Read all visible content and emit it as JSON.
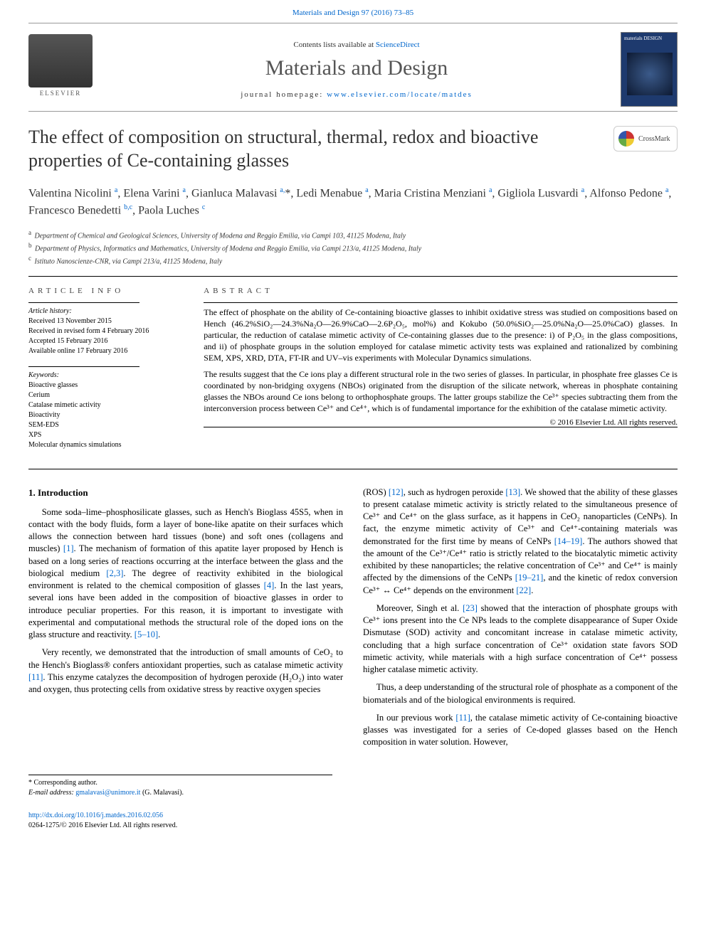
{
  "top": {
    "citation": "Materials and Design 97 (2016) 73–85",
    "contents_prefix": "Contents lists available at ",
    "sciencedirect": "ScienceDirect",
    "journal_title": "Materials and Design",
    "homepage_prefix": "journal homepage: ",
    "homepage_url": "www.elsevier.com/locate/matdes",
    "elsevier_name": "ELSEVIER",
    "cover_label": "materials DESIGN"
  },
  "crossmark": "CrossMark",
  "title": "The effect of composition on structural, thermal, redox and bioactive properties of Ce-containing glasses",
  "authors_html": "Valentina Nicolini <sup>a</sup>, Elena Varini <sup>a</sup>, Gianluca Malavasi <sup>a,</sup><span class='ast'>*</span>, Ledi Menabue <sup>a</sup>, Maria Cristina Menziani <sup>a</sup>, Gigliola Lusvardi <sup>a</sup>, Alfonso Pedone <sup>a</sup>, Francesco Benedetti <sup>b,c</sup>, Paola Luches <sup>c</sup>",
  "affiliations": [
    {
      "sup": "a",
      "text": "Department of Chemical and Geological Sciences, University of Modena and Reggio Emilia, via Campi 103, 41125 Modena, Italy"
    },
    {
      "sup": "b",
      "text": "Department of Physics, Informatics and Mathematics, University of Modena and Reggio Emilia, via Campi 213/a, 41125 Modena, Italy"
    },
    {
      "sup": "c",
      "text": "Istituto Nanoscienze-CNR, via Campi 213/a, 41125 Modena, Italy"
    }
  ],
  "info": {
    "heading": "ARTICLE INFO",
    "history_label": "Article history:",
    "history": [
      "Received 13 November 2015",
      "Received in revised form 4 February 2016",
      "Accepted 15 February 2016",
      "Available online 17 February 2016"
    ],
    "keywords_label": "Keywords:",
    "keywords": [
      "Bioactive glasses",
      "Cerium",
      "Catalase mimetic activity",
      "Bioactivity",
      "SEM-EDS",
      "XPS",
      "Molecular dynamics simulations"
    ]
  },
  "abstract": {
    "heading": "ABSTRACT",
    "p1": "The effect of phosphate on the ability of Ce-containing bioactive glasses to inhibit oxidative stress was studied on compositions based on Hench (46.2%SiO₂—24.3%Na₂O—26.9%CaO—2.6P₂O₅, mol%) and Kokubo (50.0%SiO₂—25.0%Na₂O—25.0%CaO) glasses. In particular, the reduction of catalase mimetic activity of Ce-containing glasses due to the presence: i) of P₂O₅ in the glass compositions, and ii) of phosphate groups in the solution employed for catalase mimetic activity tests was explained and rationalized by combining SEM, XPS, XRD, DTA, FT-IR and UV–vis experiments with Molecular Dynamics simulations.",
    "p2": "The results suggest that the Ce ions play a different structural role in the two series of glasses. In particular, in phosphate free glasses Ce is coordinated by non-bridging oxygens (NBOs) originated from the disruption of the silicate network, whereas in phosphate containing glasses the NBOs around Ce ions belong to orthophosphate groups. The latter groups stabilize the Ce³⁺ species subtracting them from the interconversion process between Ce³⁺ and Ce⁴⁺, which is of fundamental importance for the exhibition of the catalase mimetic activity.",
    "copyright": "© 2016 Elsevier Ltd. All rights reserved."
  },
  "body": {
    "sec1": "1. Introduction",
    "left_p1": "Some soda–lime–phosphosilicate glasses, such as Hench's Bioglass 45S5, when in contact with the body fluids, form a layer of bone-like apatite on their surfaces which allows the connection between hard tissues (bone) and soft ones (collagens and muscles) [1]. The mechanism of formation of this apatite layer proposed by Hench is based on a long series of reactions occurring at the interface between the glass and the biological medium [2,3]. The degree of reactivity exhibited in the biological environment is related to the chemical composition of glasses [4]. In the last years, several ions have been added in the composition of bioactive glasses in order to introduce peculiar properties. For this reason, it is important to investigate with experimental and computational methods the structural role of the doped ions on the glass structure and reactivity. [5–10].",
    "left_p2": "Very recently, we demonstrated that the introduction of small amounts of CeO₂ to the Hench's Bioglass® confers antioxidant properties, such as catalase mimetic activity [11]. This enzyme catalyzes the decomposition of hydrogen peroxide (H₂O₂) into water and oxygen, thus protecting cells from oxidative stress by reactive oxygen species",
    "right_p1": "(ROS) [12], such as hydrogen peroxide [13]. We showed that the ability of these glasses to present catalase mimetic activity is strictly related to the simultaneous presence of Ce³⁺ and Ce⁴⁺ on the glass surface, as it happens in CeO₂ nanoparticles (CeNPs). In fact, the enzyme mimetic activity of Ce³⁺ and Ce⁴⁺-containing materials was demonstrated for the first time by means of CeNPs [14–19]. The authors showed that the amount of the Ce³⁺/Ce⁴⁺ ratio is strictly related to the biocatalytic mimetic activity exhibited by these nanoparticles; the relative concentration of Ce³⁺ and Ce⁴⁺ is mainly affected by the dimensions of the CeNPs [19–21], and the kinetic of redox conversion Ce³⁺ ↔ Ce⁴⁺ depends on the environment [22].",
    "right_p2": "Moreover, Singh et al. [23] showed that the interaction of phosphate groups with Ce³⁺ ions present into the Ce NPs leads to the complete disappearance of Super Oxide Dismutase (SOD) activity and concomitant increase in catalase mimetic activity, concluding that a high surface concentration of Ce³⁺ oxidation state favors SOD mimetic activity, while materials with a high surface concentration of Ce⁴⁺ possess higher catalase mimetic activity.",
    "right_p3": "Thus, a deep understanding of the structural role of phosphate as a component of the biomaterials and of the biological environments is required.",
    "right_p4": "In our previous work [11], the catalase mimetic activity of Ce-containing bioactive glasses was investigated for a series of Ce-doped glasses based on the Hench composition in water solution. However,"
  },
  "footnote": {
    "corresp": "* Corresponding author.",
    "email_label": "E-mail address: ",
    "email": "gmalavasi@unimore.it",
    "email_suffix": " (G. Malavasi)."
  },
  "footer": {
    "doi": "http://dx.doi.org/10.1016/j.matdes.2016.02.056",
    "issn_line": "0264-1275/© 2016 Elsevier Ltd. All rights reserved."
  },
  "refs": {
    "r1": "[1]",
    "r23": "[2,3]",
    "r4": "[4]",
    "r510": "[5–10]",
    "r11": "[11]",
    "r12": "[12]",
    "r13": "[13]",
    "r1419": "[14–19]",
    "r1921": "[19–21]",
    "r22": "[22]",
    "r23b": "[23]",
    "r11b": "[11]"
  },
  "colors": {
    "link": "#0066cc",
    "text": "#000000",
    "muted": "#555555",
    "rule": "#000000"
  }
}
